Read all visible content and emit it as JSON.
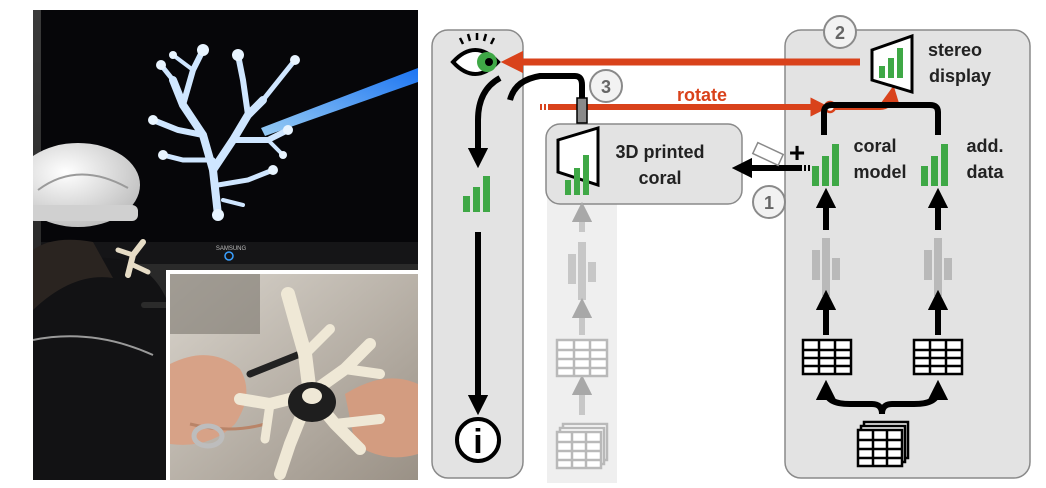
{
  "photos": {
    "main": {
      "brand": "SAMSUNG"
    },
    "inset": {}
  },
  "diagram": {
    "steps": [
      "1",
      "2",
      "3"
    ],
    "labels": {
      "rotate": "rotate",
      "stereo_line1": "stereo",
      "stereo_line2": "display",
      "printed_line1": "3D printed",
      "printed_line2": "coral",
      "coral_line1": "coral",
      "coral_line2": "model",
      "add_line1": "add.",
      "add_line2": "data",
      "info_symbol": "i",
      "plus": "+"
    }
  },
  "colors": {
    "panel": "#e3e3e3",
    "panel_border": "#8a8a8a",
    "arrow_red": "#d9421b",
    "bar_green": "#3fa846",
    "eye_green": "#3fa846",
    "faded_gray": "#b9b9b9"
  }
}
